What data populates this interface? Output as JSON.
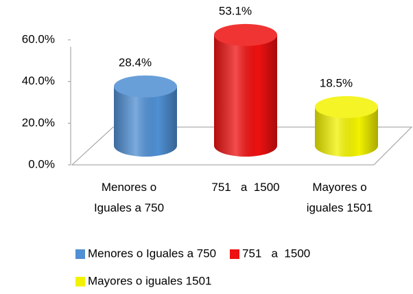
{
  "chart_data": {
    "type": "bar3d",
    "categories": [
      "Menores o Iguales a 750",
      "751   a  1500",
      "Mayores o iguales 1501"
    ],
    "values": [
      28.4,
      53.1,
      18.5
    ],
    "value_labels": [
      "28.4%",
      "53.1%",
      "18.5%"
    ],
    "colors": [
      "#4f8fd3",
      "#ee1111",
      "#f2f200"
    ],
    "ylim": [
      0,
      60
    ],
    "yticks": [
      {
        "value": 0,
        "label": "0.0%"
      },
      {
        "value": 20,
        "label": "20.0%"
      },
      {
        "value": 40,
        "label": "40.0%"
      },
      {
        "value": 60,
        "label": "60.0%"
      }
    ],
    "legend": "bottom"
  }
}
